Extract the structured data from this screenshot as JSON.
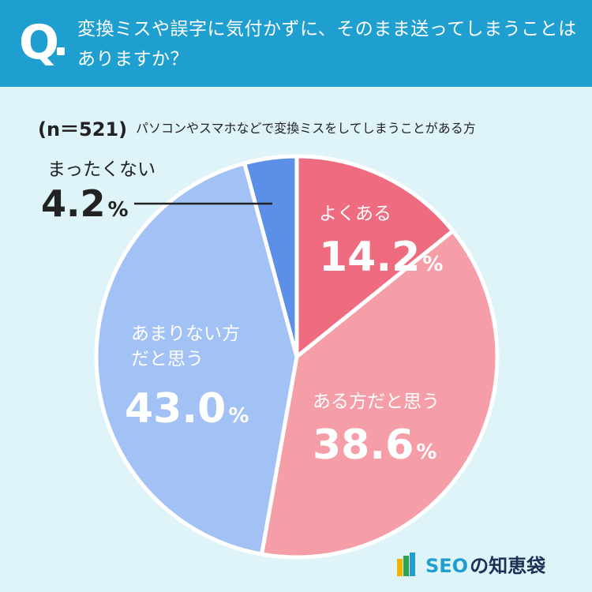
{
  "header": {
    "q_mark": "Q",
    "question": "変換ミスや誤字に気付かずに、そのまま送ってしまうことはありますか？"
  },
  "survey": {
    "n_label": "(n＝521)",
    "subtitle": "パソコンやスマホなどで変換ミスをしてしまうことがある方"
  },
  "chart_data": {
    "type": "pie",
    "start_angle_deg": 0,
    "direction": "clockwise",
    "slices": [
      {
        "label": "よくある",
        "value": 14.2,
        "display": "14.2",
        "unit": "%",
        "color": "#ee6b80"
      },
      {
        "label": "ある方だと思う",
        "value": 38.6,
        "display": "38.6",
        "unit": "%",
        "color": "#f59ea8"
      },
      {
        "label": "あまりない方だと思う",
        "value": 43.0,
        "display": "43.0",
        "unit": "%",
        "color": "#a2c1f5"
      },
      {
        "label": "まったくない",
        "value": 4.2,
        "display": "4.2",
        "unit": "%",
        "color": "#5b8fe8"
      }
    ],
    "legend": "none"
  },
  "labels": {
    "s0_name": "よくある",
    "s0_pct": "14.2",
    "s1_name": "ある方だと思う",
    "s1_pct": "38.6",
    "s2_name_1": "あまりない方",
    "s2_name_2": "だと思う",
    "s2_pct": "43.0",
    "s3_name": "まったくない",
    "s3_pct": "4.2",
    "unit": "%"
  },
  "brand": {
    "latin": "SEO",
    "japanese": "の知恵袋",
    "colors": [
      "#f0b400",
      "#2ea34a",
      "#1e9fd0"
    ]
  }
}
